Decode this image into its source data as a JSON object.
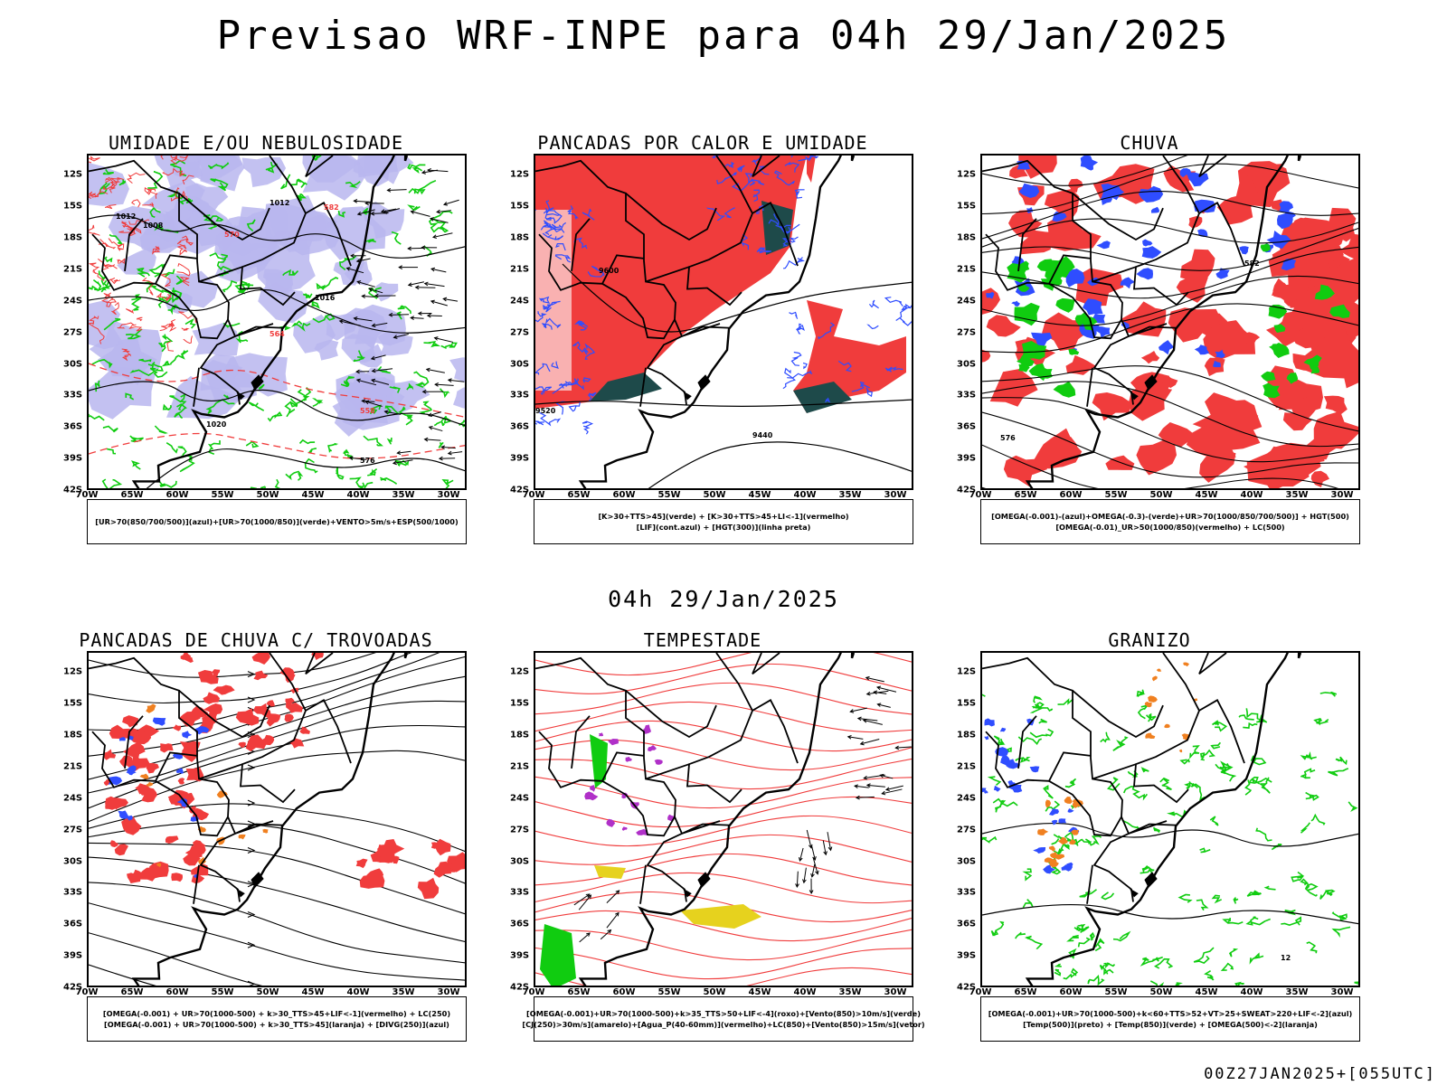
{
  "header": {
    "title": "Previsao WRF-INPE  para 04h 29/Jan/2025",
    "mid_stamp": "04h 29/Jan/2025",
    "footer_stamp": "00Z27JAN2025+[055UTC]"
  },
  "axes": {
    "lat_labels": [
      "12S",
      "15S",
      "18S",
      "21S",
      "24S",
      "27S",
      "30S",
      "33S",
      "36S",
      "39S",
      "42S"
    ],
    "lon_labels": [
      "70W",
      "65W",
      "60W",
      "55W",
      "50W",
      "45W",
      "40W",
      "35W",
      "30W"
    ]
  },
  "colors": {
    "red": "#f03c3c",
    "green": "#10cc10",
    "blue": "#2f4dff",
    "lavender": "#b8b6ee",
    "darkteal": "#1e4a4a",
    "orange": "#f08020",
    "purple": "#b030c8",
    "yellow": "#e6d21e"
  },
  "panels": [
    {
      "title": "UMIDADE E/OU NEBULOSIDADE",
      "legend": [
        "[UR>70(850/700/500)](azul)+[UR>70(1000/850)](verde)+VENTO>5m/s+ESP(500/1000)"
      ],
      "contour_labels": [
        "1012",
        "1008",
        "1012",
        "1016",
        "1020",
        "576",
        "570",
        "564",
        "558",
        "582"
      ]
    },
    {
      "title": "PANCADAS POR CALOR E UMIDADE",
      "legend": [
        "[K>30+TTS>45](verde) + [K>30+TTS>45+LI<-1](vermelho)",
        "[LIF](cont.azul) + [HGT(300)](linha preta)"
      ],
      "contour_labels": [
        "9600",
        "9520",
        "9440"
      ]
    },
    {
      "title": "CHUVA",
      "legend": [
        "[OMEGA(-0.001)-(azul)+OMEGA(-0.3)-(verde)+UR>70(1000/850/700/500)] + HGT(500)",
        "[OMEGA(-0.01)_UR>50(1000/850)(vermelho) + LC(500)"
      ],
      "contour_labels": [
        "582",
        "576"
      ]
    },
    {
      "title": "PANCADAS DE CHUVA C/ TROVOADAS",
      "legend": [
        "[OMEGA(-0.001) + UR>70(1000-500) + k>30_TTS>45+LIF<-1](vermelho) + LC(250)",
        "[OMEGA(-0.001) + UR>70(1000-500) + k>30_TTS>45](laranja) + [DIVG(250)](azul)"
      ],
      "contour_labels": []
    },
    {
      "title": "TEMPESTADE",
      "legend": [
        "[OMEGA(-0.001)+UR>70(1000-500)+k>35_TTS>50+LIF<-4](roxo)+[Vento(850)>10m/s](verde)",
        "[CJ(250)>30m/s](amarelo)+[Agua_P(40-60mm)](vermelho)+LC(850)+[Vento(850)>15m/s](vetor)"
      ],
      "contour_labels": []
    },
    {
      "title": "GRANIZO",
      "legend": [
        "[OMEGA(-0.001)+UR>70(1000-500)+k<60+TTS>52+VT>25+SWEAT>220+LIF<-2](azul)",
        "[Temp(500)](preto) + [Temp(850)](verde) + [OMEGA(500)<-2](laranja)"
      ],
      "contour_labels": [
        "12"
      ]
    }
  ]
}
